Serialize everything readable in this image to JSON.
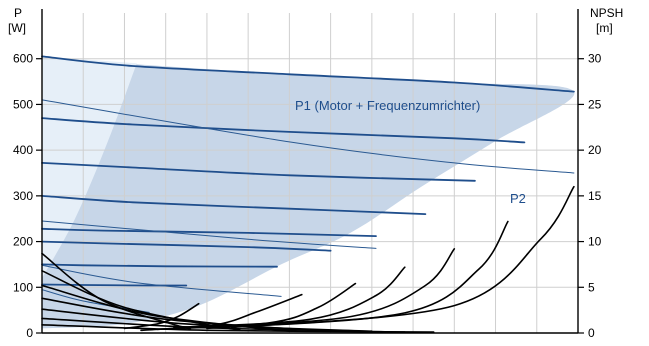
{
  "chart_data": {
    "type": "line",
    "left_axis": {
      "label_line1": "P",
      "label_line2": "[W]",
      "range": [
        0,
        700
      ],
      "ticks": [
        0,
        100,
        200,
        300,
        400,
        500,
        600
      ]
    },
    "right_axis": {
      "label_line1": "NPSH",
      "label_line2": "[m]",
      "range": [
        0,
        35
      ],
      "ticks": [
        0,
        5,
        10,
        15,
        20,
        25,
        30
      ]
    },
    "x_range": [
      0,
      13
    ],
    "grid": true,
    "annotations": [
      {
        "text": "P1 (Motor + Frequenzumrichter)",
        "color": "#1f4e8c"
      },
      {
        "text": "P2",
        "color": "#1f4e8c"
      }
    ],
    "colors": {
      "axis": "#000000",
      "grid": "#cfcfcf",
      "p1_curves": "#1f4e8c",
      "p2_curves": "#2b5a92",
      "p2_fill": "#c7d6e8",
      "p1_fill": "#e6eff8",
      "npsh_curves": "#000000"
    },
    "series": [
      {
        "group": "P1",
        "emphasis": "heavy",
        "x": [
          0,
          2.2,
          6,
          10,
          12.9
        ],
        "y": [
          605,
          584,
          566,
          548,
          528
        ]
      },
      {
        "group": "P1",
        "emphasis": "heavy",
        "x": [
          0,
          2.2,
          6,
          10,
          11.7
        ],
        "y": [
          470,
          456,
          440,
          426,
          417
        ]
      },
      {
        "group": "P1",
        "emphasis": "heavy",
        "x": [
          0,
          2.2,
          6,
          10.5
        ],
        "y": [
          372,
          362,
          345,
          333
        ]
      },
      {
        "group": "P1",
        "emphasis": "heavy",
        "x": [
          0,
          2.2,
          6,
          9.3
        ],
        "y": [
          300,
          286,
          272,
          260
        ]
      },
      {
        "group": "P1",
        "emphasis": "heavy",
        "x": [
          0,
          1.5,
          5,
          8.1
        ],
        "y": [
          228,
          224,
          219,
          212
        ]
      },
      {
        "group": "P1",
        "emphasis": "heavy",
        "x": [
          0,
          1.5,
          5,
          7
        ],
        "y": [
          200,
          196,
          188,
          180
        ]
      },
      {
        "group": "P1",
        "emphasis": "heavy",
        "x": [
          0,
          1,
          3,
          5.7
        ],
        "y": [
          150,
          148,
          146,
          145
        ]
      },
      {
        "group": "P1",
        "emphasis": "heavy",
        "x": [
          0,
          1,
          2.6,
          3.5
        ],
        "y": [
          106,
          105,
          104,
          104
        ]
      },
      {
        "group": "P2",
        "emphasis": "light",
        "x": [
          0,
          6,
          10,
          12.9
        ],
        "y": [
          510,
          418,
          372,
          350
        ]
      },
      {
        "group": "P2",
        "emphasis": "light",
        "x": [
          0,
          5,
          8.1
        ],
        "y": [
          245,
          205,
          185
        ]
      },
      {
        "group": "P2",
        "emphasis": "light",
        "x": [
          0,
          2.3,
          5.8
        ],
        "y": [
          148,
          110,
          80
        ]
      },
      {
        "group": "P2",
        "emphasis": "light",
        "x": [
          0,
          1,
          2.6
        ],
        "y": [
          95,
          70,
          45
        ]
      },
      {
        "group": "NPSH",
        "x": [
          0,
          1.5,
          3.6
        ],
        "y": [
          8.7,
          3.5,
          0.4
        ]
      },
      {
        "group": "NPSH",
        "x": [
          0,
          2,
          4.8
        ],
        "y": [
          6.8,
          2.8,
          0.3
        ]
      },
      {
        "group": "NPSH",
        "x": [
          0,
          2.6,
          6
        ],
        "y": [
          5.2,
          2,
          0.2
        ]
      },
      {
        "group": "NPSH",
        "x": [
          0,
          3,
          7
        ],
        "y": [
          3.8,
          1.5,
          0.2
        ]
      },
      {
        "group": "NPSH",
        "x": [
          0,
          3.5,
          8
        ],
        "y": [
          2.6,
          1,
          0.2
        ]
      },
      {
        "group": "NPSH",
        "x": [
          0,
          3.8,
          8.8
        ],
        "y": [
          1.6,
          0.6,
          0.1
        ]
      },
      {
        "group": "NPSH",
        "x": [
          0,
          4,
          9.5
        ],
        "y": [
          0.9,
          0.3,
          0.1
        ]
      },
      {
        "group": "NPSH",
        "x": [
          2,
          2.8,
          3.3,
          3.8
        ],
        "y": [
          0.5,
          1,
          1.8,
          3.2
        ]
      },
      {
        "group": "NPSH",
        "x": [
          2.4,
          4.2,
          5.2,
          6.3
        ],
        "y": [
          0.3,
          0.9,
          2.3,
          4.2
        ]
      },
      {
        "group": "NPSH",
        "x": [
          2.8,
          5.5,
          6.7,
          7.6
        ],
        "y": [
          0.4,
          1.1,
          2.8,
          5.4
        ]
      },
      {
        "group": "NPSH",
        "x": [
          3.2,
          6.5,
          8.1,
          8.8
        ],
        "y": [
          0.6,
          1.5,
          4.1,
          7.2
        ]
      },
      {
        "group": "NPSH",
        "x": [
          3.6,
          7.5,
          9.3,
          10
        ],
        "y": [
          0.6,
          1.8,
          5.2,
          9.2
        ]
      },
      {
        "group": "NPSH",
        "x": [
          4,
          8.8,
          10.6,
          11.3
        ],
        "y": [
          0.5,
          2.2,
          7,
          12.2
        ]
      },
      {
        "group": "NPSH",
        "x": [
          4.6,
          10,
          12.1,
          12.9
        ],
        "y": [
          0.6,
          3,
          10.3,
          16
        ]
      }
    ],
    "p1_envelope": {
      "upper_x": [
        0,
        12.9
      ],
      "upper_y": [
        605,
        528
      ],
      "lower_x": [
        2.3,
        1.6,
        0.8,
        0
      ],
      "lower_y": [
        590,
        420,
        250,
        120
      ]
    },
    "p2_envelope": {
      "x": [
        0,
        2.3,
        6,
        10,
        12.9,
        11,
        9.2,
        7.5,
        5.8,
        3.8,
        2,
        0
      ],
      "y": [
        605,
        588,
        566,
        548,
        528,
        420,
        320,
        220,
        150,
        60,
        20,
        10
      ]
    }
  }
}
